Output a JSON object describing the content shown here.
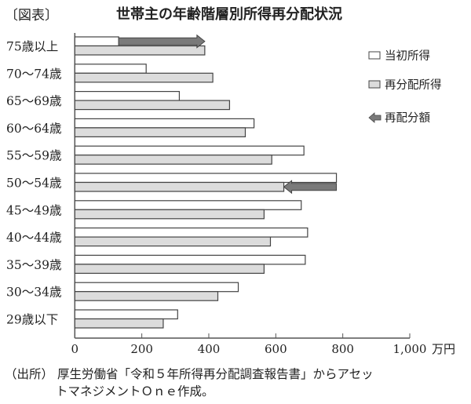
{
  "figure_label": "〔図表〕",
  "source": {
    "label": "（出所）",
    "line1": "厚生労働省「令和５年所得再分配調査報告書」からアセッ",
    "line2": "トマネジメントＯｎｅ作成。"
  },
  "chart_data": {
    "type": "bar",
    "orientation": "horizontal",
    "title": "世帯主の年齢階層別所得再分配状況",
    "xlabel": "",
    "unit": "万円",
    "xlim": [
      0,
      1000
    ],
    "xticks": [
      "0",
      "200",
      "400",
      "600",
      "800",
      "1,000"
    ],
    "grid": false,
    "legend_position": "right",
    "categories": [
      "75歳以上",
      "70〜74歳",
      "65〜69歳",
      "60〜64歳",
      "55〜59歳",
      "50〜54歳",
      "45〜49歳",
      "40〜44歳",
      "35〜39歳",
      "30〜34歳",
      "29歳以下"
    ],
    "series": [
      {
        "name": "当初所得",
        "color": "#ffffff",
        "values": [
          131,
          213,
          312,
          535,
          684,
          781,
          676,
          695,
          688,
          488,
          307
        ]
      },
      {
        "name": "再分配所得",
        "color": "#dcdcdc",
        "values": [
          388,
          412,
          462,
          509,
          588,
          624,
          565,
          584,
          565,
          427,
          264
        ]
      }
    ],
    "arrows_legend": "再配分額",
    "arrow_color": "#7a7a7a",
    "arrow_categories": [
      "75歳以上",
      "50〜54歳"
    ]
  }
}
